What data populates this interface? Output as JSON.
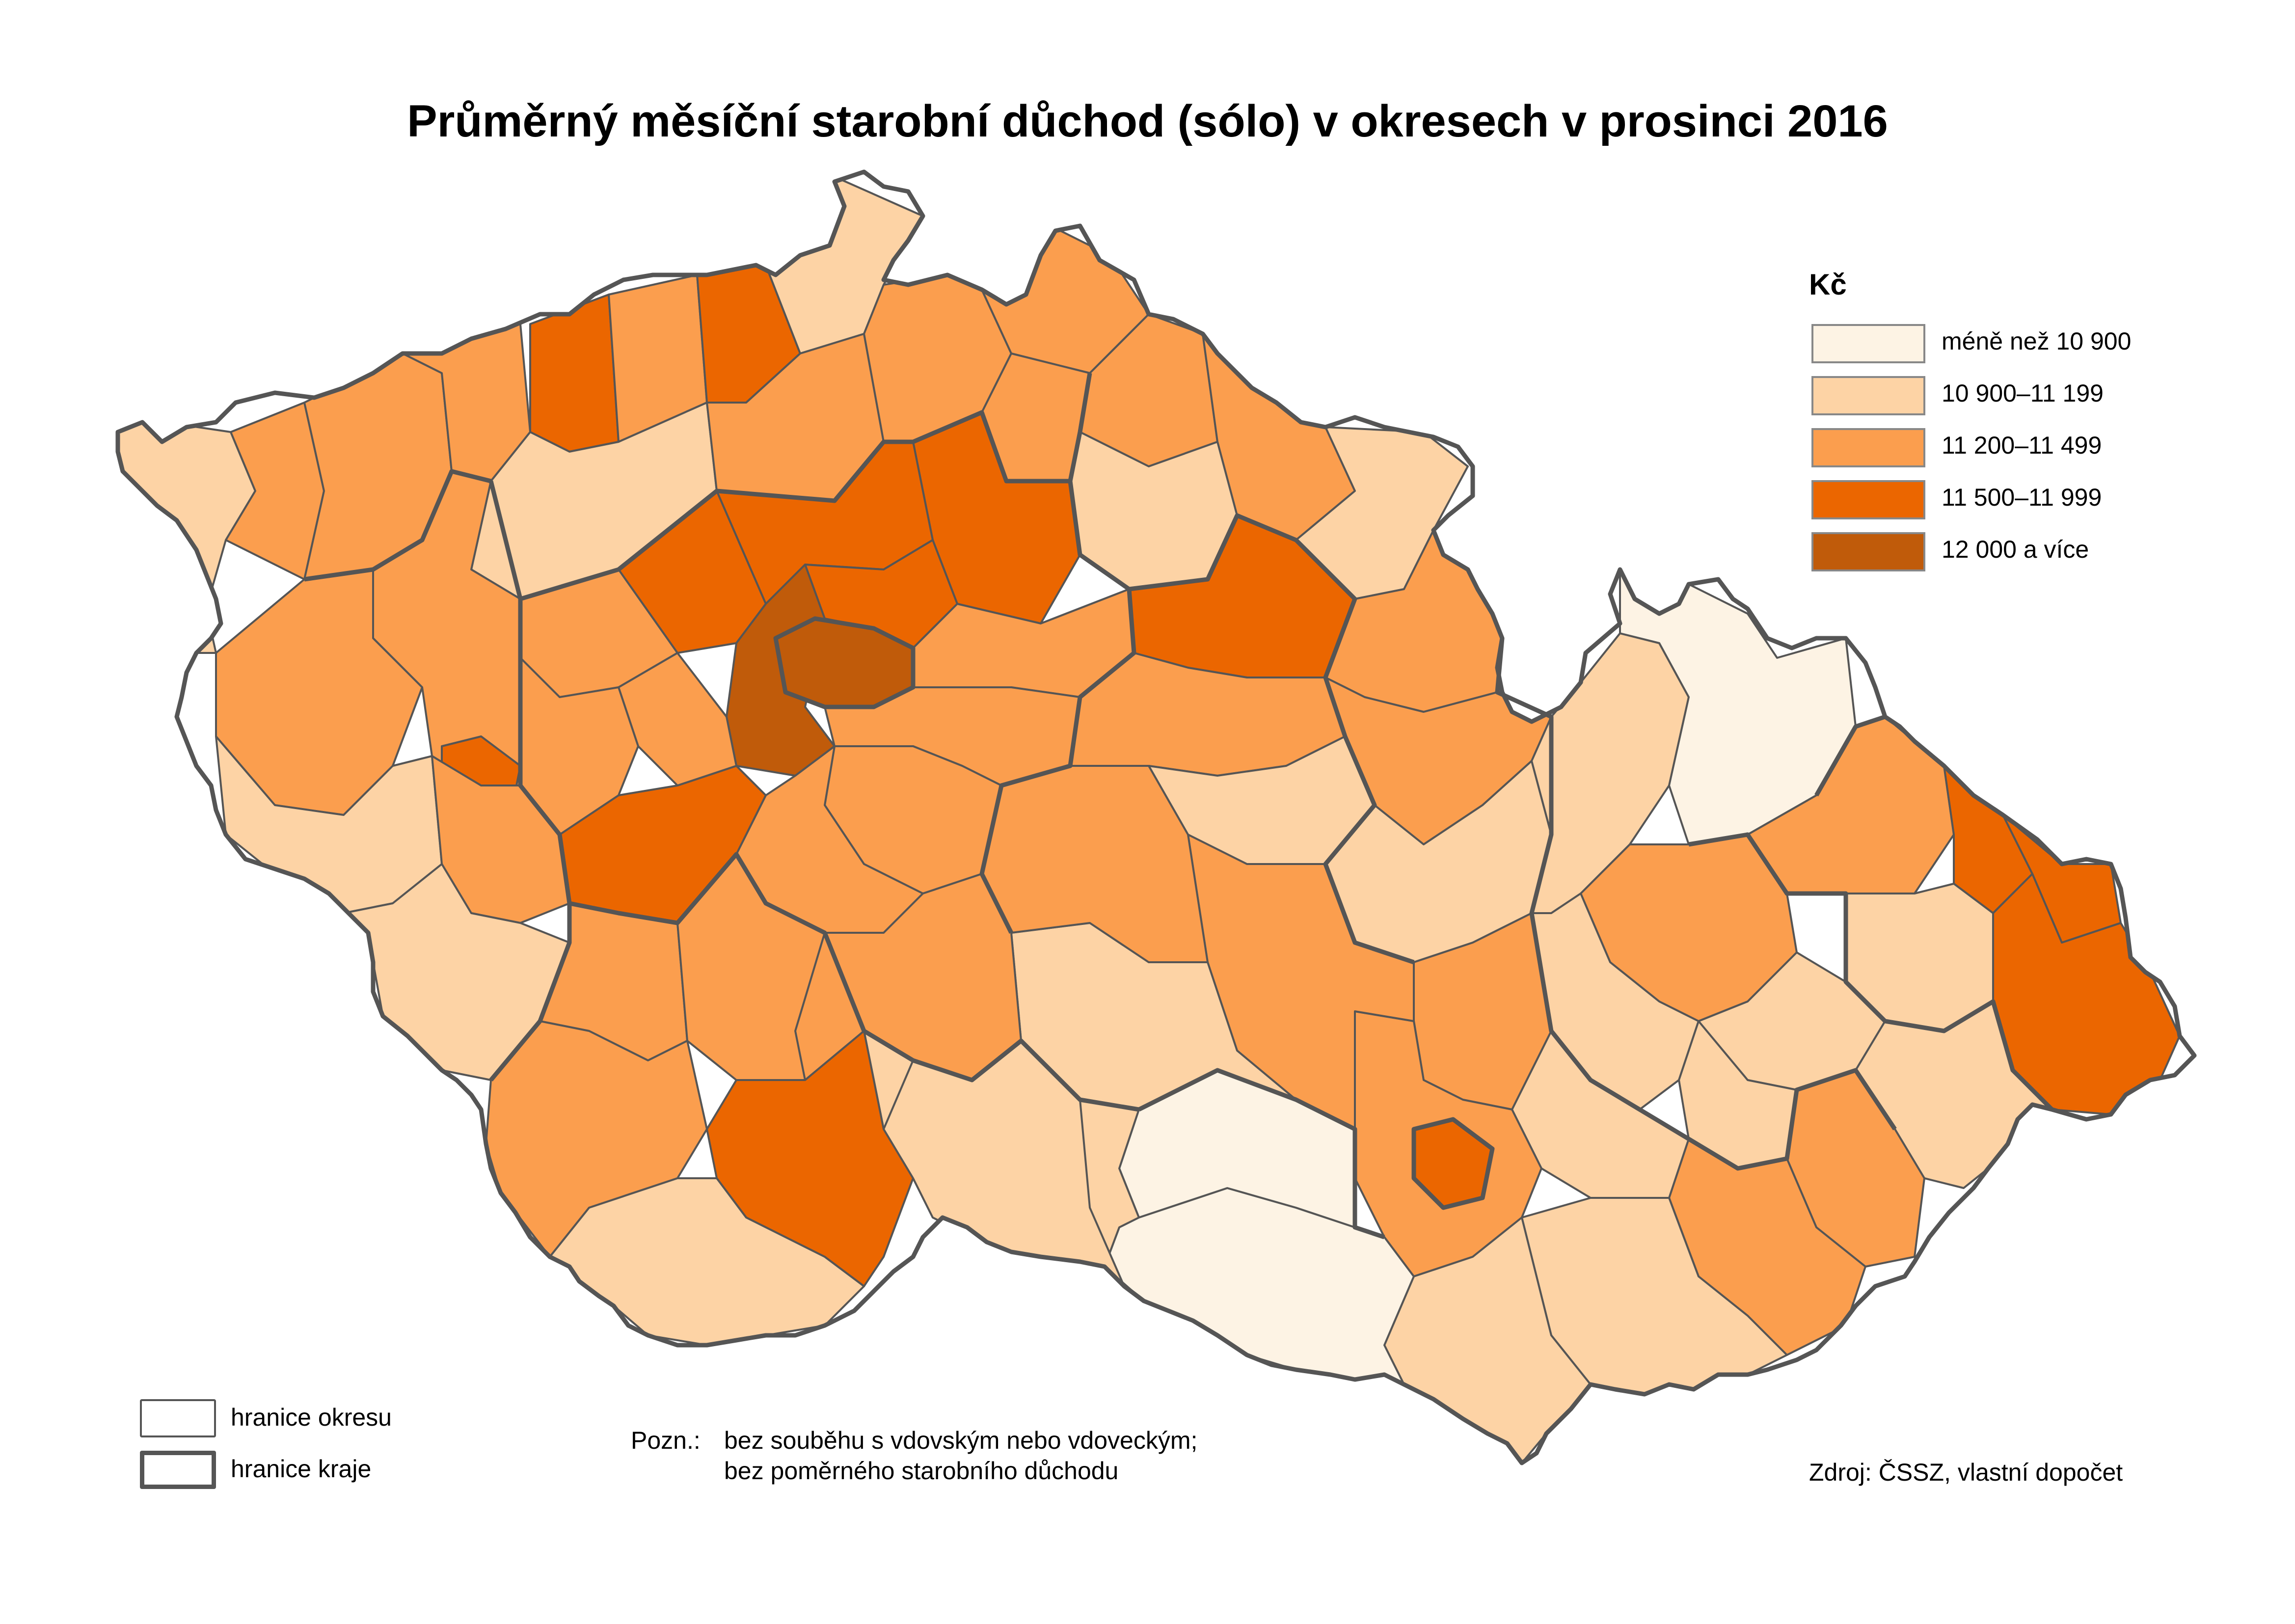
{
  "title": "Průměrný měsíční starobní důchod (sólo) v okresech v prosinci 2016",
  "legend": {
    "title": "Kč",
    "classes": [
      {
        "label": "méně než 10 900",
        "color": "#fdf3e4"
      },
      {
        "label": "10 900–11 199",
        "color": "#fdd3a5"
      },
      {
        "label": "11 200–11 499",
        "color": "#fb9e4e"
      },
      {
        "label": "11 500–11 999",
        "color": "#eb6600"
      },
      {
        "label": "12 000 a více",
        "color": "#c05b0a"
      }
    ]
  },
  "border_legend": {
    "district": "hranice okresu",
    "region": "hranice kraje"
  },
  "note": {
    "label": "Pozn.:",
    "line1": "bez souběhu s vdovským nebo vdoveckým;",
    "line2": "bez poměrného starobního důchodu"
  },
  "source": "Zdroj: ČSSZ, vlastní dopočet",
  "colors": {
    "district_border": "#555555",
    "region_border": "#555555"
  }
}
